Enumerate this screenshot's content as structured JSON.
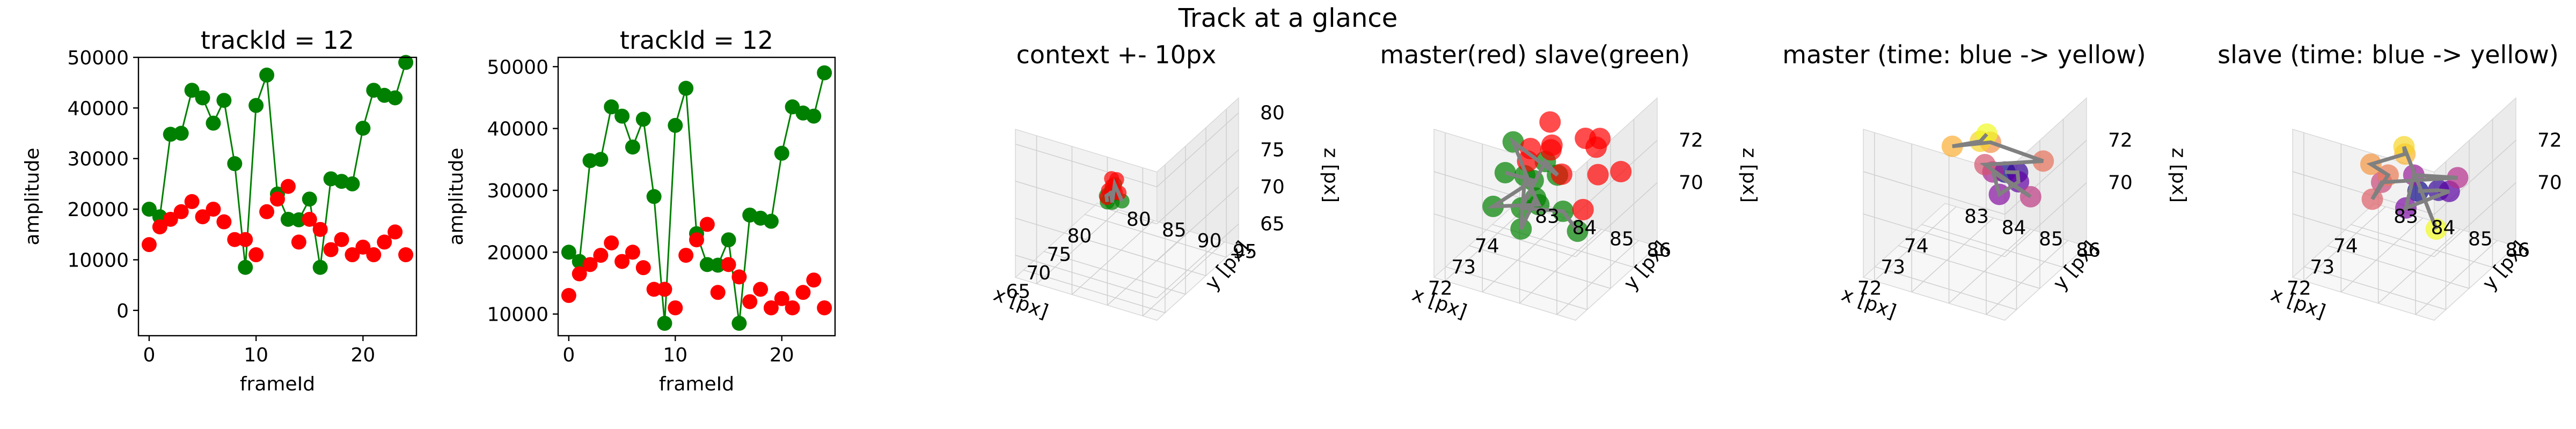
{
  "figure": {
    "suptitle": "Track at a glance"
  },
  "chart_data": [
    {
      "type": "scatter",
      "title": "trackId = 12",
      "xlabel": "frameId",
      "ylabel": "amplitude",
      "xlim": [
        -1,
        25
      ],
      "ylim": [
        -5000,
        50000
      ],
      "xticks": [
        0,
        10,
        20
      ],
      "yticks": [
        0,
        10000,
        20000,
        30000,
        40000,
        50000
      ],
      "series": [
        {
          "color": "#008000",
          "line": true,
          "x": [
            0,
            1,
            2,
            3,
            4,
            5,
            6,
            7,
            8,
            9,
            10,
            11,
            12,
            13,
            14,
            15,
            16,
            17,
            18,
            19,
            20,
            21,
            22,
            23,
            24
          ],
          "y": [
            20000,
            18500,
            34800,
            35000,
            43500,
            42000,
            37000,
            41500,
            29000,
            8500,
            40500,
            46500,
            23000,
            18000,
            17900,
            22000,
            8500,
            26000,
            25500,
            25000,
            36000,
            43500,
            42500,
            42000,
            49000
          ]
        },
        {
          "color": "#ff0000",
          "line": false,
          "x": [
            0,
            1,
            2,
            3,
            4,
            5,
            6,
            7,
            8,
            9,
            10,
            11,
            12,
            13,
            14,
            15,
            16,
            17,
            18,
            19,
            20,
            21,
            22,
            23,
            24
          ],
          "y": [
            13000,
            16500,
            18000,
            19500,
            21500,
            18500,
            20000,
            17500,
            14000,
            14000,
            11000,
            19500,
            22000,
            24500,
            13500,
            18000,
            16000,
            12000,
            14000,
            11000,
            12500,
            11000,
            13500,
            15500,
            11000
          ]
        }
      ]
    },
    {
      "type": "scatter",
      "title": "trackId = 12",
      "xlabel": "frameId",
      "ylabel": "amplitude",
      "xlim": [
        -1,
        25
      ],
      "ylim": [
        6500,
        51500
      ],
      "xticks": [
        0,
        10,
        20
      ],
      "yticks": [
        10000,
        20000,
        30000,
        40000,
        50000
      ],
      "series": [
        {
          "color": "#008000",
          "line": true,
          "x": [
            0,
            1,
            2,
            3,
            4,
            5,
            6,
            7,
            8,
            9,
            10,
            11,
            12,
            13,
            14,
            15,
            16,
            17,
            18,
            19,
            20,
            21,
            22,
            23,
            24
          ],
          "y": [
            20000,
            18500,
            34800,
            35000,
            43500,
            42000,
            37000,
            41500,
            29000,
            8500,
            40500,
            46500,
            23000,
            18000,
            17900,
            22000,
            8500,
            26000,
            25500,
            25000,
            36000,
            43500,
            42500,
            42000,
            49000
          ]
        },
        {
          "color": "#ff0000",
          "line": false,
          "x": [
            0,
            1,
            2,
            3,
            4,
            5,
            6,
            7,
            8,
            9,
            10,
            11,
            12,
            13,
            14,
            15,
            16,
            17,
            18,
            19,
            20,
            21,
            22,
            23,
            24
          ],
          "y": [
            13000,
            16500,
            18000,
            19500,
            21500,
            18500,
            20000,
            17500,
            14000,
            14000,
            11000,
            19500,
            22000,
            24500,
            13500,
            18000,
            16000,
            12000,
            14000,
            11000,
            12500,
            11000,
            13500,
            15500,
            11000
          ]
        }
      ]
    },
    {
      "type": "scatter3d",
      "title": "context +- 10px",
      "xlabel": "x [px]",
      "ylabel": "y [px]",
      "zlabel": "z [px]",
      "xlim": [
        63,
        83
      ],
      "ylim": [
        77,
        97
      ],
      "zlim": [
        62,
        82
      ],
      "xticks": [
        65,
        70,
        75,
        80
      ],
      "yticks": [
        80,
        85,
        90,
        95
      ],
      "zticks": [
        65,
        70,
        75,
        80
      ],
      "points_red": [
        [
          72.8,
          84.5,
          71
        ],
        [
          73.2,
          84.8,
          71.5
        ],
        [
          73.6,
          85,
          70.5
        ],
        [
          73.9,
          84.3,
          72
        ],
        [
          73.4,
          85.3,
          72.4
        ],
        [
          73.1,
          84.1,
          69.8
        ],
        [
          74,
          85.3,
          70.3
        ]
      ],
      "points_green": [
        [
          72.5,
          84.5,
          69.6
        ],
        [
          72.8,
          84.2,
          70.2
        ],
        [
          73.2,
          84.7,
          70.6
        ],
        [
          72.6,
          85,
          71.2
        ],
        [
          73.5,
          84.5,
          70
        ],
        [
          73,
          84.9,
          69.4
        ],
        [
          73.8,
          84.8,
          71.4
        ],
        [
          74.2,
          85.6,
          69.2
        ]
      ]
    },
    {
      "type": "scatter3d",
      "title": "master(red) slave(green)",
      "xlabel": "x [px]",
      "ylabel": "y [px]",
      "zlabel": "z [px]",
      "xlim": [
        71.5,
        75
      ],
      "ylim": [
        82.7,
        86.5
      ],
      "zlim": [
        67,
        74
      ],
      "xticks": [
        72,
        73,
        74
      ],
      "yticks": [
        83,
        84,
        85,
        86
      ],
      "zticks": [
        70,
        72
      ],
      "points_red": [
        [
          72.6,
          84.6,
          73.0
        ],
        [
          73.0,
          84.9,
          72.7
        ],
        [
          73.6,
          84.5,
          73.2
        ],
        [
          74.0,
          85.2,
          72.4
        ],
        [
          73.3,
          85.0,
          71.3
        ],
        [
          73.9,
          85.6,
          71.0
        ],
        [
          74.3,
          85.4,
          72.2
        ],
        [
          73.1,
          85.7,
          70.2
        ],
        [
          74.0,
          84.3,
          71.6
        ],
        [
          72.8,
          84.4,
          72.1
        ],
        [
          73.5,
          85.8,
          72.8
        ],
        [
          74.4,
          85.9,
          70.8
        ]
      ],
      "points_green": [
        [
          72.0,
          84.3,
          72.3
        ],
        [
          72.4,
          84.8,
          71.8
        ],
        [
          71.8,
          84.1,
          70.8
        ],
        [
          72.8,
          84.7,
          70.2
        ],
        [
          73.0,
          84.2,
          71.1
        ],
        [
          72.2,
          84.6,
          69.6
        ],
        [
          73.3,
          84.3,
          69.8
        ],
        [
          72.5,
          84.2,
          73.2
        ],
        [
          73.6,
          84.7,
          70.8
        ],
        [
          72.6,
          85.0,
          72.6
        ],
        [
          71.9,
          84.8,
          71.0
        ],
        [
          73.2,
          85.1,
          69.7
        ],
        [
          74.3,
          84.8,
          67.5
        ]
      ]
    },
    {
      "type": "scatter3d",
      "title": "master (time: blue -> yellow)",
      "xlabel": "x [px]",
      "ylabel": "y [px]",
      "zlabel": "z [px]",
      "xlim": [
        71.5,
        75
      ],
      "ylim": [
        82.7,
        86.5
      ],
      "zlim": [
        67,
        74
      ],
      "xticks": [
        72,
        73,
        74
      ],
      "yticks": [
        83,
        84,
        85,
        86
      ],
      "zticks": [
        70,
        72
      ],
      "cmap": [
        "#0d0887",
        "#6a00a8",
        "#b12a90",
        "#e16462",
        "#fca636",
        "#f0f921"
      ],
      "points": [
        [
          73.9,
          85.0,
          70.8
        ],
        [
          73.8,
          85.4,
          71.1
        ],
        [
          74.0,
          85.3,
          70.4
        ],
        [
          73.5,
          85.1,
          70.2
        ],
        [
          73.7,
          84.8,
          70.9
        ],
        [
          74.2,
          85.5,
          69.6
        ],
        [
          73.2,
          84.9,
          71.8
        ],
        [
          74.1,
          85.9,
          71.6
        ],
        [
          73.6,
          84.8,
          72.4
        ],
        [
          72.6,
          84.4,
          73.0
        ],
        [
          73.0,
          84.9,
          73.1
        ],
        [
          72.8,
          85.2,
          73.8
        ]
      ]
    },
    {
      "type": "scatter3d",
      "title": "slave (time: blue -> yellow)",
      "xlabel": "x [px]",
      "ylabel": "y [px]",
      "zlabel": "z [px]",
      "xlim": [
        71.5,
        75
      ],
      "ylim": [
        82.7,
        86.5
      ],
      "zlim": [
        67,
        74
      ],
      "xticks": [
        72,
        73,
        74
      ],
      "yticks": [
        83,
        84,
        85,
        86
      ],
      "zticks": [
        70,
        72
      ],
      "cmap": [
        "#0d0887",
        "#6a00a8",
        "#b12a90",
        "#e16462",
        "#fca636",
        "#f0f921"
      ],
      "points": [
        [
          73.2,
          85.0,
          70.6
        ],
        [
          73.6,
          85.3,
          70.4
        ],
        [
          73.9,
          85.4,
          70.1
        ],
        [
          73.0,
          84.8,
          69.9
        ],
        [
          73.5,
          84.7,
          70.9
        ],
        [
          74.1,
          85.5,
          70.6
        ],
        [
          72.6,
          84.4,
          71.3
        ],
        [
          72.2,
          84.4,
          70.9
        ],
        [
          72.4,
          84.7,
          72.0
        ],
        [
          72.3,
          84.3,
          72.4
        ],
        [
          72.8,
          84.9,
          72.7
        ],
        [
          72.6,
          85.0,
          73.3
        ],
        [
          74.3,
          84.8,
          67.6
        ]
      ]
    }
  ]
}
